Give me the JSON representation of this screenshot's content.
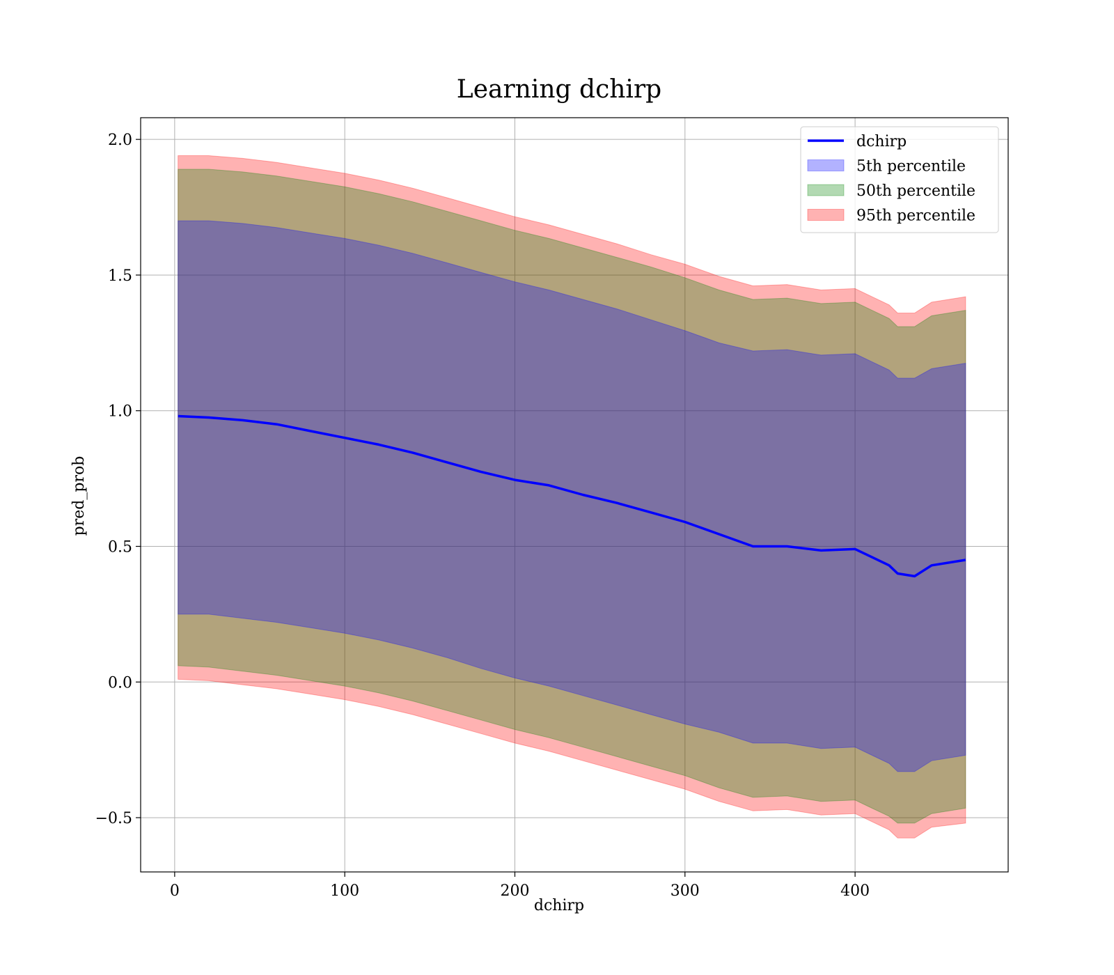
{
  "chart_data": {
    "type": "line",
    "title": "Learning dchirp",
    "xlabel": "dchirp",
    "ylabel": "pred_prob",
    "xlim": [
      -20,
      490
    ],
    "ylim": [
      -0.7,
      2.08
    ],
    "xticks": [
      0,
      100,
      200,
      300,
      400
    ],
    "yticks": [
      -0.5,
      0.0,
      0.5,
      1.0,
      1.5,
      2.0
    ],
    "xtick_labels": [
      "0",
      "100",
      "200",
      "300",
      "400"
    ],
    "ytick_labels": [
      "−0.5",
      "0.0",
      "0.5",
      "1.0",
      "1.5",
      "2.0"
    ],
    "grid": true,
    "legend_position": "top-right",
    "colors": {
      "line": "#0000ff",
      "band_5": "#0000ff",
      "band_50": "#008000",
      "band_95": "#ff0000"
    },
    "x": [
      2,
      20,
      40,
      60,
      80,
      100,
      120,
      140,
      160,
      180,
      200,
      220,
      240,
      260,
      280,
      300,
      320,
      340,
      360,
      380,
      400,
      410,
      420,
      425,
      435,
      445,
      465
    ],
    "series": [
      {
        "name": "dchirp",
        "kind": "line",
        "values": [
          0.98,
          0.975,
          0.965,
          0.95,
          0.925,
          0.9,
          0.875,
          0.845,
          0.81,
          0.775,
          0.745,
          0.725,
          0.69,
          0.66,
          0.625,
          0.59,
          0.545,
          0.5,
          0.5,
          0.485,
          0.49,
          0.46,
          0.43,
          0.4,
          0.39,
          0.43,
          0.45
        ]
      },
      {
        "name": "5th percentile",
        "kind": "band",
        "lower": [
          0.25,
          0.25,
          0.235,
          0.22,
          0.2,
          0.18,
          0.155,
          0.125,
          0.09,
          0.05,
          0.015,
          -0.015,
          -0.05,
          -0.085,
          -0.12,
          -0.155,
          -0.185,
          -0.225,
          -0.225,
          -0.245,
          -0.24,
          -0.27,
          -0.3,
          -0.33,
          -0.33,
          -0.29,
          -0.27
        ],
        "upper": [
          1.7,
          1.7,
          1.69,
          1.675,
          1.655,
          1.635,
          1.61,
          1.58,
          1.545,
          1.51,
          1.475,
          1.445,
          1.41,
          1.375,
          1.335,
          1.295,
          1.25,
          1.22,
          1.225,
          1.205,
          1.21,
          1.18,
          1.15,
          1.12,
          1.12,
          1.155,
          1.175
        ]
      },
      {
        "name": "50th percentile",
        "kind": "band",
        "lower": [
          0.06,
          0.055,
          0.04,
          0.025,
          0.005,
          -0.015,
          -0.04,
          -0.07,
          -0.105,
          -0.14,
          -0.175,
          -0.205,
          -0.24,
          -0.275,
          -0.31,
          -0.345,
          -0.39,
          -0.425,
          -0.42,
          -0.44,
          -0.435,
          -0.465,
          -0.495,
          -0.52,
          -0.52,
          -0.485,
          -0.465
        ],
        "upper": [
          1.89,
          1.89,
          1.88,
          1.865,
          1.845,
          1.825,
          1.8,
          1.77,
          1.735,
          1.7,
          1.665,
          1.635,
          1.6,
          1.565,
          1.53,
          1.49,
          1.445,
          1.41,
          1.415,
          1.395,
          1.4,
          1.37,
          1.34,
          1.31,
          1.31,
          1.35,
          1.37
        ]
      },
      {
        "name": "95th percentile",
        "kind": "band",
        "lower": [
          0.01,
          0.005,
          -0.01,
          -0.025,
          -0.045,
          -0.065,
          -0.09,
          -0.12,
          -0.155,
          -0.19,
          -0.225,
          -0.255,
          -0.29,
          -0.325,
          -0.36,
          -0.395,
          -0.44,
          -0.475,
          -0.47,
          -0.49,
          -0.485,
          -0.515,
          -0.545,
          -0.575,
          -0.575,
          -0.535,
          -0.52
        ],
        "upper": [
          1.94,
          1.94,
          1.93,
          1.915,
          1.895,
          1.875,
          1.85,
          1.82,
          1.785,
          1.75,
          1.715,
          1.685,
          1.65,
          1.615,
          1.575,
          1.54,
          1.495,
          1.46,
          1.465,
          1.445,
          1.45,
          1.42,
          1.39,
          1.36,
          1.36,
          1.4,
          1.42
        ]
      }
    ]
  }
}
